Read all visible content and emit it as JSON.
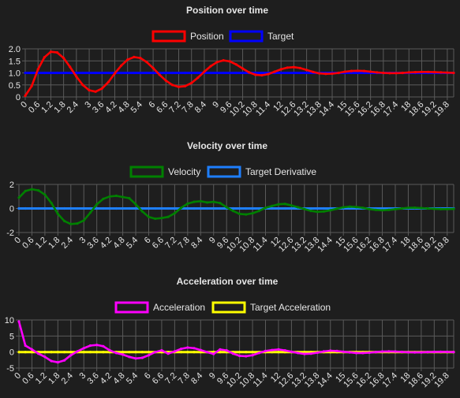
{
  "chart_data": [
    {
      "type": "line",
      "title": "Position over time",
      "legend_position": "top",
      "grid": true,
      "ylim": [
        0,
        2
      ],
      "y_ticks": [
        "0",
        "0.5",
        "1.0",
        "1.5",
        "2.0"
      ],
      "x_ticks": [
        "0",
        "0.6",
        "1.2",
        "1.8",
        "2.4",
        "3",
        "3.6",
        "4.2",
        "4.8",
        "5.4",
        "6",
        "6.6",
        "7.2",
        "7.8",
        "8.4",
        "9",
        "9.6",
        "10.2",
        "10.8",
        "11.4",
        "12",
        "12.6",
        "13.2",
        "13.8",
        "14.4",
        "15",
        "15.6",
        "16.2",
        "16.8",
        "17.4",
        "18",
        "18.6",
        "19.2",
        "19.8"
      ],
      "x": [
        0,
        0.3,
        0.6,
        0.9,
        1.2,
        1.5,
        1.8,
        2.1,
        2.4,
        2.7,
        3,
        3.3,
        3.6,
        3.9,
        4.2,
        4.5,
        4.8,
        5.1,
        5.4,
        5.7,
        6,
        6.3,
        6.6,
        6.9,
        7.2,
        7.5,
        7.8,
        8.1,
        8.4,
        8.7,
        9,
        9.3,
        9.6,
        9.9,
        10.2,
        10.5,
        10.8,
        11.1,
        11.4,
        11.7,
        12,
        12.3,
        12.6,
        12.9,
        13.2,
        13.5,
        13.8,
        14.1,
        14.4,
        14.7,
        15,
        15.3,
        15.6,
        15.9,
        16.2,
        16.5,
        16.8,
        17.1,
        17.4,
        17.7,
        18,
        18.3,
        18.6,
        18.9,
        19.2,
        19.5,
        19.8,
        20.1
      ],
      "series": [
        {
          "name": "Position",
          "color": "#ff0000",
          "values": [
            0.05,
            0.45,
            1.15,
            1.65,
            1.88,
            1.85,
            1.62,
            1.25,
            0.85,
            0.5,
            0.28,
            0.22,
            0.35,
            0.62,
            0.98,
            1.3,
            1.55,
            1.66,
            1.62,
            1.45,
            1.2,
            0.92,
            0.68,
            0.5,
            0.42,
            0.45,
            0.58,
            0.8,
            1.05,
            1.28,
            1.45,
            1.52,
            1.48,
            1.35,
            1.18,
            1.02,
            0.92,
            0.9,
            0.95,
            1.05,
            1.15,
            1.22,
            1.24,
            1.2,
            1.12,
            1.04,
            0.98,
            0.96,
            0.97,
            1.0,
            1.05,
            1.08,
            1.09,
            1.08,
            1.05,
            1.02,
            1.0,
            0.99,
            0.99,
            1.0,
            1.02,
            1.03,
            1.04,
            1.04,
            1.03,
            1.02,
            1.01,
            1.0
          ]
        },
        {
          "name": "Target",
          "color": "#0000ff",
          "values": [
            1,
            1,
            1,
            1,
            1,
            1,
            1,
            1,
            1,
            1,
            1,
            1,
            1,
            1,
            1,
            1,
            1,
            1,
            1,
            1,
            1,
            1,
            1,
            1,
            1,
            1,
            1,
            1,
            1,
            1,
            1,
            1,
            1,
            1,
            1,
            1,
            1,
            1,
            1,
            1,
            1,
            1,
            1,
            1,
            1,
            1,
            1,
            1,
            1,
            1,
            1,
            1,
            1,
            1,
            1,
            1,
            1,
            1,
            1,
            1,
            1,
            1,
            1,
            1,
            1,
            1,
            1,
            1
          ]
        }
      ]
    },
    {
      "type": "line",
      "title": "Velocity over time",
      "legend_position": "top",
      "grid": true,
      "ylim": [
        -2,
        2
      ],
      "y_ticks": [
        "-2",
        "0",
        "2"
      ],
      "x_ticks": [
        "0",
        "0.6",
        "1.2",
        "1.8",
        "2.4",
        "3",
        "3.6",
        "4.2",
        "4.8",
        "5.4",
        "6",
        "6.6",
        "7.2",
        "7.8",
        "8.4",
        "9",
        "9.6",
        "10.2",
        "10.8",
        "11.4",
        "12",
        "12.6",
        "13.2",
        "13.8",
        "14.4",
        "15",
        "15.6",
        "16.2",
        "16.8",
        "17.4",
        "18",
        "18.6",
        "19.2",
        "19.8"
      ],
      "x": [
        0,
        0.3,
        0.6,
        0.9,
        1.2,
        1.5,
        1.8,
        2.1,
        2.4,
        2.7,
        3,
        3.3,
        3.6,
        3.9,
        4.2,
        4.5,
        4.8,
        5.1,
        5.4,
        5.7,
        6,
        6.3,
        6.6,
        6.9,
        7.2,
        7.5,
        7.8,
        8.1,
        8.4,
        8.7,
        9,
        9.3,
        9.6,
        9.9,
        10.2,
        10.5,
        10.8,
        11.1,
        11.4,
        11.7,
        12,
        12.3,
        12.6,
        12.9,
        13.2,
        13.5,
        13.8,
        14.1,
        14.4,
        14.7,
        15,
        15.3,
        15.6,
        15.9,
        16.2,
        16.5,
        16.8,
        17.1,
        17.4,
        17.7,
        18,
        18.3,
        18.6,
        18.9,
        19.2,
        19.5,
        19.8,
        20.1
      ],
      "series": [
        {
          "name": "Velocity",
          "color": "#008000",
          "values": [
            0.9,
            1.45,
            1.6,
            1.5,
            1.15,
            0.45,
            -0.45,
            -1.05,
            -1.3,
            -1.25,
            -1.0,
            -0.35,
            0.35,
            0.8,
            1.0,
            1.05,
            0.95,
            0.85,
            0.35,
            -0.25,
            -0.7,
            -0.85,
            -0.8,
            -0.7,
            -0.4,
            0.05,
            0.4,
            0.55,
            0.6,
            0.5,
            0.55,
            0.45,
            0.1,
            -0.2,
            -0.45,
            -0.5,
            -0.4,
            -0.2,
            0.05,
            0.2,
            0.35,
            0.38,
            0.25,
            0.1,
            -0.05,
            -0.2,
            -0.28,
            -0.25,
            -0.15,
            -0.02,
            0.1,
            0.15,
            0.12,
            0.05,
            -0.05,
            -0.12,
            -0.15,
            -0.12,
            -0.06,
            0.0,
            0.05,
            0.06,
            0.03,
            0.0,
            -0.03,
            -0.05,
            -0.05,
            -0.04
          ]
        },
        {
          "name": "Target Derivative",
          "color": "#1e7fff",
          "values": [
            0,
            0,
            0,
            0,
            0,
            0,
            0,
            0,
            0,
            0,
            0,
            0,
            0,
            0,
            0,
            0,
            0,
            0,
            0,
            0,
            0,
            0,
            0,
            0,
            0,
            0,
            0,
            0,
            0,
            0,
            0,
            0,
            0,
            0,
            0,
            0,
            0,
            0,
            0,
            0,
            0,
            0,
            0,
            0,
            0,
            0,
            0,
            0,
            0,
            0,
            0,
            0,
            0,
            0,
            0,
            0,
            0,
            0,
            0,
            0,
            0,
            0,
            0,
            0,
            0,
            0,
            0,
            0
          ]
        }
      ]
    },
    {
      "type": "line",
      "title": "Acceleration over time",
      "legend_position": "top",
      "grid": true,
      "ylim": [
        -5,
        10
      ],
      "y_ticks": [
        "-5",
        "0",
        "5",
        "10"
      ],
      "x_ticks": [
        "0",
        "0.6",
        "1.2",
        "1.8",
        "2.4",
        "3",
        "3.6",
        "4.2",
        "4.8",
        "5.4",
        "6",
        "6.6",
        "7.2",
        "7.8",
        "8.4",
        "9",
        "9.6",
        "10.2",
        "10.8",
        "11.4",
        "12",
        "12.6",
        "13.2",
        "13.8",
        "14.4",
        "15",
        "15.6",
        "16.2",
        "16.8",
        "17.4",
        "18",
        "18.6",
        "19.2",
        "19.8"
      ],
      "x": [
        0,
        0.3,
        0.6,
        0.9,
        1.2,
        1.5,
        1.8,
        2.1,
        2.4,
        2.7,
        3,
        3.3,
        3.6,
        3.9,
        4.2,
        4.5,
        4.8,
        5.1,
        5.4,
        5.7,
        6,
        6.3,
        6.6,
        6.9,
        7.2,
        7.5,
        7.8,
        8.1,
        8.4,
        8.7,
        9,
        9.3,
        9.6,
        9.9,
        10.2,
        10.5,
        10.8,
        11.1,
        11.4,
        11.7,
        12,
        12.3,
        12.6,
        12.9,
        13.2,
        13.5,
        13.8,
        14.1,
        14.4,
        14.7,
        15,
        15.3,
        15.6,
        15.9,
        16.2,
        16.5,
        16.8,
        17.1,
        17.4,
        17.7,
        18,
        18.3,
        18.6,
        18.9,
        19.2,
        19.5,
        19.8,
        20.1
      ],
      "series": [
        {
          "name": "Acceleration",
          "color": "#ff00ff",
          "values": [
            9.5,
            2.0,
            0.8,
            -0.5,
            -1.5,
            -2.8,
            -3.2,
            -2.6,
            -1.0,
            0.2,
            1.2,
            2.0,
            2.2,
            1.8,
            0.5,
            -0.3,
            -0.8,
            -1.5,
            -2.0,
            -1.8,
            -1.0,
            0.0,
            0.5,
            -0.5,
            0.2,
            1.0,
            1.4,
            1.2,
            0.6,
            0.0,
            -0.6,
            0.8,
            0.5,
            -0.5,
            -1.2,
            -1.3,
            -1.0,
            -0.3,
            0.3,
            0.6,
            0.8,
            0.5,
            0.1,
            -0.3,
            -0.6,
            -0.5,
            -0.2,
            0.2,
            0.4,
            0.3,
            0.1,
            -0.1,
            -0.3,
            -0.3,
            -0.2,
            0.0,
            0.15,
            0.2,
            0.15,
            0.05,
            -0.05,
            -0.1,
            -0.1,
            0.0,
            0.05,
            0.1,
            0.05,
            0.0
          ]
        },
        {
          "name": "Target Acceleration",
          "color": "#ffff00",
          "values": [
            0,
            0,
            0,
            0,
            0,
            0,
            0,
            0,
            0,
            0,
            0,
            0,
            0,
            0,
            0,
            0,
            0,
            0,
            0,
            0,
            0,
            0,
            0,
            0,
            0,
            0,
            0,
            0,
            0,
            0,
            0,
            0,
            0,
            0,
            0,
            0,
            0,
            0,
            0,
            0,
            0,
            0,
            0,
            0,
            0,
            0,
            0,
            0,
            0,
            0,
            0,
            0,
            0,
            0,
            0,
            0,
            0,
            0,
            0,
            0,
            0,
            0,
            0,
            0,
            0,
            0,
            0,
            0
          ]
        }
      ]
    }
  ]
}
